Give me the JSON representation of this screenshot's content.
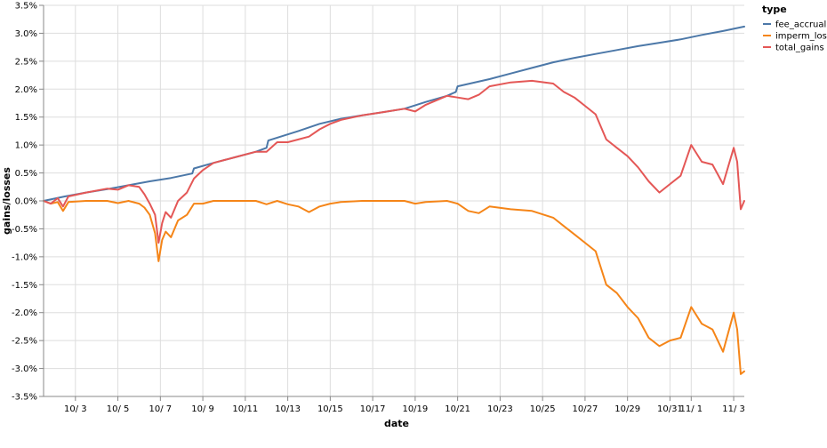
{
  "chart_data": {
    "type": "line",
    "xlabel": "date",
    "ylabel": "gains/losses",
    "ylim": [
      -3.5,
      3.5
    ],
    "y_ticks": [
      -3.5,
      -3.0,
      -2.5,
      -2.0,
      -1.5,
      -1.0,
      -0.5,
      0.0,
      0.5,
      1.0,
      1.5,
      2.0,
      2.5,
      3.0,
      3.5
    ],
    "y_tick_labels": [
      "-3.5%",
      "-3.0%",
      "-2.5%",
      "-2.0%",
      "-1.5%",
      "-1.0%",
      "-0.5%",
      "0.0%",
      "0.5%",
      "1.0%",
      "1.5%",
      "2.0%",
      "2.5%",
      "3.0%",
      "3.5%"
    ],
    "x_domain": [
      "2021-10-01T12:00",
      "2021-11-03T12:00"
    ],
    "x_ticks": [
      "2021-10-03",
      "2021-10-05",
      "2021-10-07",
      "2021-10-09",
      "2021-10-11",
      "2021-10-13",
      "2021-10-15",
      "2021-10-17",
      "2021-10-19",
      "2021-10-21",
      "2021-10-23",
      "2021-10-25",
      "2021-10-27",
      "2021-10-29",
      "2021-10-31",
      "2021-11-01",
      "2021-11-03"
    ],
    "x_tick_labels": [
      "10/ 3",
      "10/ 5",
      "10/ 7",
      "10/ 9",
      "10/11",
      "10/13",
      "10/15",
      "10/17",
      "10/19",
      "10/21",
      "10/23",
      "10/25",
      "10/27",
      "10/29",
      "10/31",
      "11/ 1",
      "11/ 3"
    ],
    "grid": true,
    "legend": {
      "title": "type",
      "position": "top-right"
    },
    "series": [
      {
        "name": "fee_accrual",
        "color": "#4c78a8",
        "points": [
          [
            "2021-10-01T12:00",
            0.0
          ],
          [
            "2021-10-02T12:00",
            0.08
          ],
          [
            "2021-10-03T12:00",
            0.15
          ],
          [
            "2021-10-04T12:00",
            0.21
          ],
          [
            "2021-10-05T12:00",
            0.28
          ],
          [
            "2021-10-06T12:00",
            0.35
          ],
          [
            "2021-10-07T12:00",
            0.41
          ],
          [
            "2021-10-08T12:00",
            0.49
          ],
          [
            "2021-10-08T14:00",
            0.58
          ],
          [
            "2021-10-09T12:00",
            0.68
          ],
          [
            "2021-10-10T12:00",
            0.78
          ],
          [
            "2021-10-11T12:00",
            0.88
          ],
          [
            "2021-10-12T00:00",
            0.95
          ],
          [
            "2021-10-12T02:00",
            1.08
          ],
          [
            "2021-10-13T12:00",
            1.25
          ],
          [
            "2021-10-14T12:00",
            1.38
          ],
          [
            "2021-10-15T12:00",
            1.47
          ],
          [
            "2021-10-16T12:00",
            1.53
          ],
          [
            "2021-10-17T12:00",
            1.59
          ],
          [
            "2021-10-18T12:00",
            1.65
          ],
          [
            "2021-10-19T12:00",
            1.77
          ],
          [
            "2021-10-20T12:00",
            1.88
          ],
          [
            "2021-10-20T22:00",
            1.95
          ],
          [
            "2021-10-21T00:00",
            2.05
          ],
          [
            "2021-10-22T12:00",
            2.18
          ],
          [
            "2021-10-23T12:00",
            2.28
          ],
          [
            "2021-10-24T12:00",
            2.38
          ],
          [
            "2021-10-25T12:00",
            2.48
          ],
          [
            "2021-10-26T12:00",
            2.56
          ],
          [
            "2021-10-27T12:00",
            2.63
          ],
          [
            "2021-10-28T12:00",
            2.7
          ],
          [
            "2021-10-29T12:00",
            2.77
          ],
          [
            "2021-10-30T12:00",
            2.83
          ],
          [
            "2021-10-31T12:00",
            2.89
          ],
          [
            "2021-11-01T12:00",
            2.97
          ],
          [
            "2021-11-02T12:00",
            3.04
          ],
          [
            "2021-11-03T12:00",
            3.12
          ]
        ]
      },
      {
        "name": "imperm_loss",
        "color": "#f58518",
        "points": [
          [
            "2021-10-01T12:00",
            0.0
          ],
          [
            "2021-10-01T20:00",
            -0.05
          ],
          [
            "2021-10-02T04:00",
            -0.02
          ],
          [
            "2021-10-02T10:00",
            -0.18
          ],
          [
            "2021-10-02T16:00",
            -0.02
          ],
          [
            "2021-10-03T12:00",
            0.0
          ],
          [
            "2021-10-04T12:00",
            0.0
          ],
          [
            "2021-10-05T00:00",
            -0.04
          ],
          [
            "2021-10-05T12:00",
            0.0
          ],
          [
            "2021-10-06T00:00",
            -0.05
          ],
          [
            "2021-10-06T06:00",
            -0.12
          ],
          [
            "2021-10-06T12:00",
            -0.25
          ],
          [
            "2021-10-06T18:00",
            -0.58
          ],
          [
            "2021-10-06T22:00",
            -1.08
          ],
          [
            "2021-10-07T02:00",
            -0.7
          ],
          [
            "2021-10-07T06:00",
            -0.55
          ],
          [
            "2021-10-07T12:00",
            -0.65
          ],
          [
            "2021-10-07T20:00",
            -0.35
          ],
          [
            "2021-10-08T06:00",
            -0.25
          ],
          [
            "2021-10-08T14:00",
            -0.05
          ],
          [
            "2021-10-09T00:00",
            -0.05
          ],
          [
            "2021-10-09T12:00",
            0.0
          ],
          [
            "2021-10-10T12:00",
            0.0
          ],
          [
            "2021-10-11T12:00",
            0.0
          ],
          [
            "2021-10-12T00:00",
            -0.06
          ],
          [
            "2021-10-12T12:00",
            0.0
          ],
          [
            "2021-10-13T00:00",
            -0.06
          ],
          [
            "2021-10-13T12:00",
            -0.1
          ],
          [
            "2021-10-14T00:00",
            -0.2
          ],
          [
            "2021-10-14T12:00",
            -0.1
          ],
          [
            "2021-10-15T00:00",
            -0.05
          ],
          [
            "2021-10-15T12:00",
            -0.02
          ],
          [
            "2021-10-16T12:00",
            0.0
          ],
          [
            "2021-10-17T12:00",
            0.0
          ],
          [
            "2021-10-18T12:00",
            0.0
          ],
          [
            "2021-10-19T00:00",
            -0.05
          ],
          [
            "2021-10-19T12:00",
            -0.02
          ],
          [
            "2021-10-20T12:00",
            0.0
          ],
          [
            "2021-10-21T00:00",
            -0.05
          ],
          [
            "2021-10-21T12:00",
            -0.18
          ],
          [
            "2021-10-22T00:00",
            -0.22
          ],
          [
            "2021-10-22T12:00",
            -0.1
          ],
          [
            "2021-10-23T12:00",
            -0.15
          ],
          [
            "2021-10-24T12:00",
            -0.18
          ],
          [
            "2021-10-25T12:00",
            -0.3
          ],
          [
            "2021-10-26T00:00",
            -0.45
          ],
          [
            "2021-10-26T12:00",
            -0.6
          ],
          [
            "2021-10-27T00:00",
            -0.75
          ],
          [
            "2021-10-27T12:00",
            -0.9
          ],
          [
            "2021-10-28T00:00",
            -1.5
          ],
          [
            "2021-10-28T12:00",
            -1.65
          ],
          [
            "2021-10-29T00:00",
            -1.9
          ],
          [
            "2021-10-29T12:00",
            -2.1
          ],
          [
            "2021-10-30T00:00",
            -2.45
          ],
          [
            "2021-10-30T12:00",
            -2.6
          ],
          [
            "2021-10-31T00:00",
            -2.5
          ],
          [
            "2021-10-31T12:00",
            -2.45
          ],
          [
            "2021-11-01T00:00",
            -1.9
          ],
          [
            "2021-11-01T12:00",
            -2.2
          ],
          [
            "2021-11-02T00:00",
            -2.3
          ],
          [
            "2021-11-02T12:00",
            -2.7
          ],
          [
            "2021-11-03T00:00",
            -2.0
          ],
          [
            "2021-11-03T04:00",
            -2.3
          ],
          [
            "2021-11-03T08:00",
            -3.1
          ],
          [
            "2021-11-03T12:00",
            -3.05
          ]
        ]
      },
      {
        "name": "total_gains",
        "color": "#e45756",
        "points": [
          [
            "2021-10-01T12:00",
            0.0
          ],
          [
            "2021-10-01T20:00",
            -0.05
          ],
          [
            "2021-10-02T04:00",
            0.05
          ],
          [
            "2021-10-02T10:00",
            -0.1
          ],
          [
            "2021-10-02T16:00",
            0.08
          ],
          [
            "2021-10-03T12:00",
            0.15
          ],
          [
            "2021-10-04T12:00",
            0.22
          ],
          [
            "2021-10-05T00:00",
            0.2
          ],
          [
            "2021-10-05T12:00",
            0.28
          ],
          [
            "2021-10-06T00:00",
            0.25
          ],
          [
            "2021-10-06T06:00",
            0.12
          ],
          [
            "2021-10-06T12:00",
            -0.05
          ],
          [
            "2021-10-06T18:00",
            -0.25
          ],
          [
            "2021-10-06T22:00",
            -0.75
          ],
          [
            "2021-10-07T02:00",
            -0.4
          ],
          [
            "2021-10-07T06:00",
            -0.2
          ],
          [
            "2021-10-07T12:00",
            -0.3
          ],
          [
            "2021-10-07T20:00",
            0.0
          ],
          [
            "2021-10-08T06:00",
            0.15
          ],
          [
            "2021-10-08T14:00",
            0.4
          ],
          [
            "2021-10-09T00:00",
            0.55
          ],
          [
            "2021-10-09T12:00",
            0.68
          ],
          [
            "2021-10-10T12:00",
            0.78
          ],
          [
            "2021-10-11T12:00",
            0.88
          ],
          [
            "2021-10-12T00:00",
            0.88
          ],
          [
            "2021-10-12T12:00",
            1.05
          ],
          [
            "2021-10-13T00:00",
            1.05
          ],
          [
            "2021-10-13T12:00",
            1.1
          ],
          [
            "2021-10-14T00:00",
            1.15
          ],
          [
            "2021-10-14T12:00",
            1.28
          ],
          [
            "2021-10-15T00:00",
            1.38
          ],
          [
            "2021-10-15T12:00",
            1.45
          ],
          [
            "2021-10-16T12:00",
            1.53
          ],
          [
            "2021-10-17T12:00",
            1.59
          ],
          [
            "2021-10-18T12:00",
            1.65
          ],
          [
            "2021-10-19T00:00",
            1.6
          ],
          [
            "2021-10-19T12:00",
            1.72
          ],
          [
            "2021-10-20T12:00",
            1.88
          ],
          [
            "2021-10-21T00:00",
            1.85
          ],
          [
            "2021-10-21T12:00",
            1.82
          ],
          [
            "2021-10-22T00:00",
            1.9
          ],
          [
            "2021-10-22T12:00",
            2.05
          ],
          [
            "2021-10-23T12:00",
            2.12
          ],
          [
            "2021-10-24T12:00",
            2.15
          ],
          [
            "2021-10-25T12:00",
            2.1
          ],
          [
            "2021-10-26T00:00",
            1.95
          ],
          [
            "2021-10-26T12:00",
            1.85
          ],
          [
            "2021-10-27T00:00",
            1.7
          ],
          [
            "2021-10-27T12:00",
            1.55
          ],
          [
            "2021-10-28T00:00",
            1.1
          ],
          [
            "2021-10-28T12:00",
            0.95
          ],
          [
            "2021-10-29T00:00",
            0.8
          ],
          [
            "2021-10-29T12:00",
            0.6
          ],
          [
            "2021-10-30T00:00",
            0.35
          ],
          [
            "2021-10-30T12:00",
            0.15
          ],
          [
            "2021-10-31T00:00",
            0.3
          ],
          [
            "2021-10-31T12:00",
            0.45
          ],
          [
            "2021-11-01T00:00",
            1.0
          ],
          [
            "2021-11-01T12:00",
            0.7
          ],
          [
            "2021-11-02T00:00",
            0.65
          ],
          [
            "2021-11-02T12:00",
            0.3
          ],
          [
            "2021-11-03T00:00",
            0.95
          ],
          [
            "2021-11-03T04:00",
            0.7
          ],
          [
            "2021-11-03T08:00",
            -0.15
          ],
          [
            "2021-11-03T12:00",
            0.0
          ]
        ]
      }
    ]
  }
}
